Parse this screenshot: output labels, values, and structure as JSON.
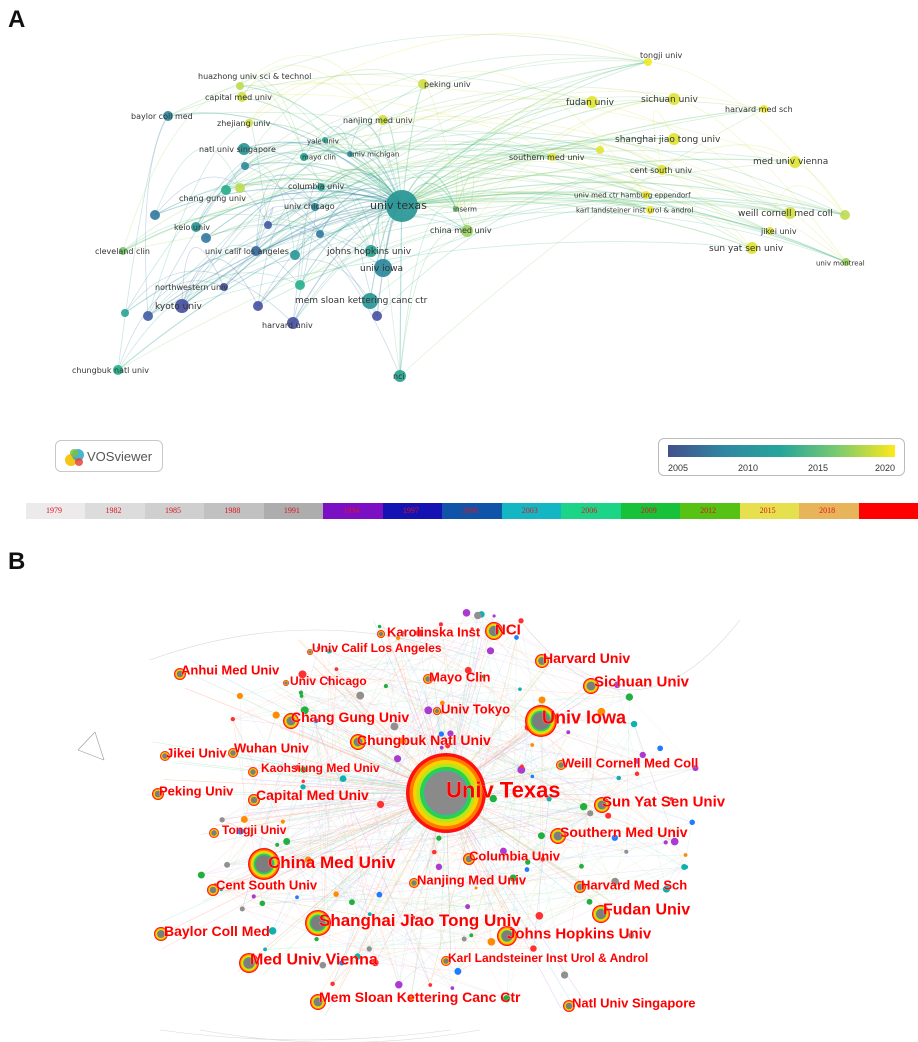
{
  "panel_a": {
    "letter": "A",
    "logo_text": "VOSviewer",
    "legend_ticks": [
      "2005",
      "2010",
      "2015",
      "2020"
    ],
    "nodes": [
      {
        "label": "tongji univ",
        "year": 2021
      },
      {
        "label": "huazhong univ sci & technol",
        "year": 2018
      },
      {
        "label": "peking univ",
        "year": 2019
      },
      {
        "label": "capital med univ",
        "year": 2019
      },
      {
        "label": "fudan univ",
        "year": 2020
      },
      {
        "label": "sichuan univ",
        "year": 2020
      },
      {
        "label": "harvard med sch",
        "year": 2021
      },
      {
        "label": "baylor coll med",
        "year": 2010
      },
      {
        "label": "nanjing med univ",
        "year": 2019
      },
      {
        "label": "zhejiang univ",
        "year": 2019
      },
      {
        "label": "shanghai jiao tong univ",
        "year": 2020
      },
      {
        "label": "yale univ",
        "year": 2012
      },
      {
        "label": "natl univ singapore",
        "year": 2011
      },
      {
        "label": "univ michigan",
        "year": 2010
      },
      {
        "label": "mayo clin",
        "year": 2012
      },
      {
        "label": "southern med univ",
        "year": 2020
      },
      {
        "label": "cent south univ",
        "year": 2020
      },
      {
        "label": "med univ vienna",
        "year": 2020
      },
      {
        "label": "columbia univ",
        "year": 2012
      },
      {
        "label": "univ med ctr hamburg eppendorf",
        "year": 2021
      },
      {
        "label": "chang gung univ",
        "year": 2013
      },
      {
        "label": "univ texas",
        "year": 2011
      },
      {
        "label": "karl landsteiner inst urol & androl",
        "year": 2021
      },
      {
        "label": "univ chicago",
        "year": 2010
      },
      {
        "label": "inserm",
        "year": 2016
      },
      {
        "label": "weill cornell med coll",
        "year": 2019
      },
      {
        "label": "keio univ",
        "year": 2011
      },
      {
        "label": "china med univ",
        "year": 2017
      },
      {
        "label": "jikei univ",
        "year": 2020
      },
      {
        "label": "univ calif los angeles",
        "year": 2008
      },
      {
        "label": "cleveland clin",
        "year": 2016
      },
      {
        "label": "johns hopkins univ",
        "year": 2012
      },
      {
        "label": "sun yat sen univ",
        "year": 2020
      },
      {
        "label": "univ iowa",
        "year": 2010
      },
      {
        "label": "univ montreal",
        "year": 2017
      },
      {
        "label": "northwestern univ",
        "year": 2006
      },
      {
        "label": "kyoto univ",
        "year": 2006
      },
      {
        "label": "mem sloan kettering canc ctr",
        "year": 2011
      },
      {
        "label": "harvard univ",
        "year": 2006
      },
      {
        "label": "chungbuk natl univ",
        "year": 2013
      },
      {
        "label": "nci",
        "year": 2012
      }
    ]
  },
  "timebar": {
    "years": [
      "1979",
      "1982",
      "1985",
      "1988",
      "1991",
      "1994",
      "1997",
      "2000",
      "2003",
      "2006",
      "2009",
      "2012",
      "2015",
      "2018",
      ""
    ],
    "colors": [
      "#eceaea",
      "#dcdcdc",
      "#cfcfcf",
      "#c1c1c1",
      "#adadad",
      "#7a0fc4",
      "#1412b2",
      "#1054aa",
      "#14b6c4",
      "#1cd488",
      "#17c23a",
      "#56c214",
      "#e6e04e",
      "#e8b45a",
      "#ff0000"
    ]
  },
  "panel_b": {
    "letter": "B",
    "nodes": [
      {
        "label": "Karolinska Inst"
      },
      {
        "label": "NCI"
      },
      {
        "label": "Univ Calif Los Angeles"
      },
      {
        "label": "Harvard Univ"
      },
      {
        "label": "Anhui Med Univ"
      },
      {
        "label": "Mayo Clin"
      },
      {
        "label": "Univ Chicago"
      },
      {
        "label": "Sichuan Univ"
      },
      {
        "label": "Univ Tokyo"
      },
      {
        "label": "Chang Gung Univ"
      },
      {
        "label": "Univ Iowa"
      },
      {
        "label": "Chungbuk Natl Univ"
      },
      {
        "label": "Jikei Univ"
      },
      {
        "label": "Wuhan Univ"
      },
      {
        "label": "Weill Cornell Med Coll"
      },
      {
        "label": "Kaohsiung Med Univ"
      },
      {
        "label": "Univ Texas"
      },
      {
        "label": "Peking Univ"
      },
      {
        "label": "Capital Med Univ"
      },
      {
        "label": "Sun Yat Sen Univ"
      },
      {
        "label": "Tongji Univ"
      },
      {
        "label": "Southern Med Univ"
      },
      {
        "label": "Columbia Univ"
      },
      {
        "label": "China Med Univ"
      },
      {
        "label": "Cent South Univ"
      },
      {
        "label": "Nanjing Med Univ"
      },
      {
        "label": "Harvard Med Sch"
      },
      {
        "label": "Fudan Univ"
      },
      {
        "label": "Shanghai Jiao Tong Univ"
      },
      {
        "label": "Baylor Coll Med"
      },
      {
        "label": "Johns Hopkins Univ"
      },
      {
        "label": "Med Univ Vienna"
      },
      {
        "label": "Karl Landsteiner Inst Urol & Androl"
      },
      {
        "label": "Mem Sloan Kettering Canc Ctr"
      },
      {
        "label": "Natl Univ Singapore"
      }
    ]
  }
}
